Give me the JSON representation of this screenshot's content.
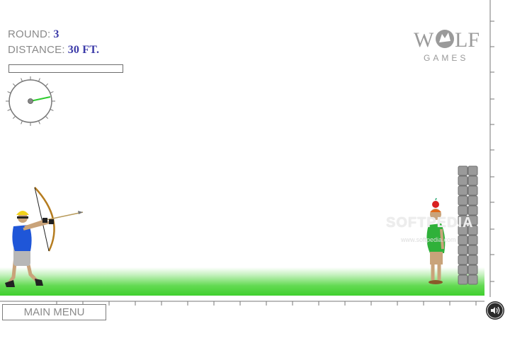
{
  "hud": {
    "round_label": "ROUND:",
    "round_value": "3",
    "distance_label": "DISTANCE:",
    "distance_value": "30 FT.",
    "power_fraction": 0
  },
  "logo": {
    "text_top_left": "W",
    "text_top_right": "LF",
    "text_bottom": "GAMES"
  },
  "buttons": {
    "main_menu": "MAIN MENU"
  },
  "watermark": {
    "text": "SOFTPEDIA",
    "sub": "www.softpedia.com"
  },
  "colors": {
    "hud_value": "#3b3aa8",
    "grass": "#3fcf2e",
    "apple": "#d92020",
    "archer_shirt": "#1f56d8",
    "target_shirt": "#2fb13a"
  }
}
